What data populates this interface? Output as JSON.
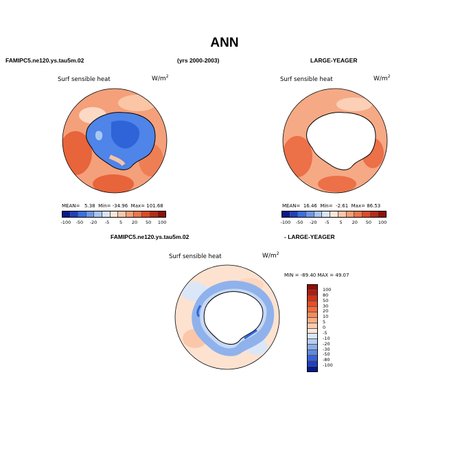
{
  "title": "ANN",
  "header_left": "FAMIPC5.ne120.ys.tau5m.02",
  "header_center": "(yrs 2000-2003)",
  "header_right": "LARGE-YEAGER",
  "bottom_label_left": "FAMIPC5.ne120.ys.tau5m.02",
  "bottom_label_right": "- LARGE-YEAGER",
  "panels": [
    {
      "variable": "Surf sensible heat",
      "unit": "W/m",
      "unit_exp": "2",
      "mean_label": "MEAN=",
      "mean": "5.38",
      "min_label": "Min=",
      "min": "-34.96",
      "max_label": "Max=",
      "max": "101.68"
    },
    {
      "variable": "Surf sensible heat",
      "unit": "W/m",
      "unit_exp": "2",
      "mean_label": "MEAN=",
      "mean": "16.46",
      "min_label": "Min=",
      "min": "-2.61",
      "max_label": "Max=",
      "max": "86.53"
    },
    {
      "variable": "Surf sensible heat",
      "unit": "W/m",
      "unit_exp": "2",
      "minmax_text": "MIN = -89.40 MAX =  49.07"
    }
  ],
  "colorbar_top": {
    "colors": [
      "#0a1a8c",
      "#1f3fc4",
      "#3c6ee0",
      "#6b97ec",
      "#a9c4f2",
      "#d6e4f8",
      "#fde6d8",
      "#fcc6a8",
      "#f89e74",
      "#f07448",
      "#de4a26",
      "#bd2a12",
      "#8e1206"
    ],
    "labels": [
      "-100",
      "-50",
      "-20",
      "-5",
      "5",
      "20",
      "50",
      "100"
    ]
  },
  "colorbar_diff": {
    "colors": [
      "#8e0f05",
      "#b51c0d",
      "#cf3318",
      "#e65025",
      "#f46c3b",
      "#f88c5a",
      "#fbad84",
      "#fccbb0",
      "#fde6d8",
      "#dbe7f8",
      "#b5cdf2",
      "#8cafea",
      "#5f89e0",
      "#3a62d6",
      "#1f3fc4",
      "#0a1a8c"
    ],
    "labels": [
      "100",
      "80",
      "50",
      "30",
      "20",
      "10",
      "5",
      "0",
      "-5",
      "-10",
      "-20",
      "-30",
      "-50",
      "-80",
      "-100"
    ]
  },
  "maps": [
    {
      "name": "model",
      "ocean_color": "#f4a07a",
      "ice_color": "#4a7ee6",
      "antarctica": "filled"
    },
    {
      "name": "obs",
      "ocean_color": "#f4a07a",
      "antarctica": "blank"
    },
    {
      "name": "difference",
      "ocean_color": "#fde2d0",
      "ring_color": "#8fb2ec",
      "antarctica": "blank"
    }
  ]
}
